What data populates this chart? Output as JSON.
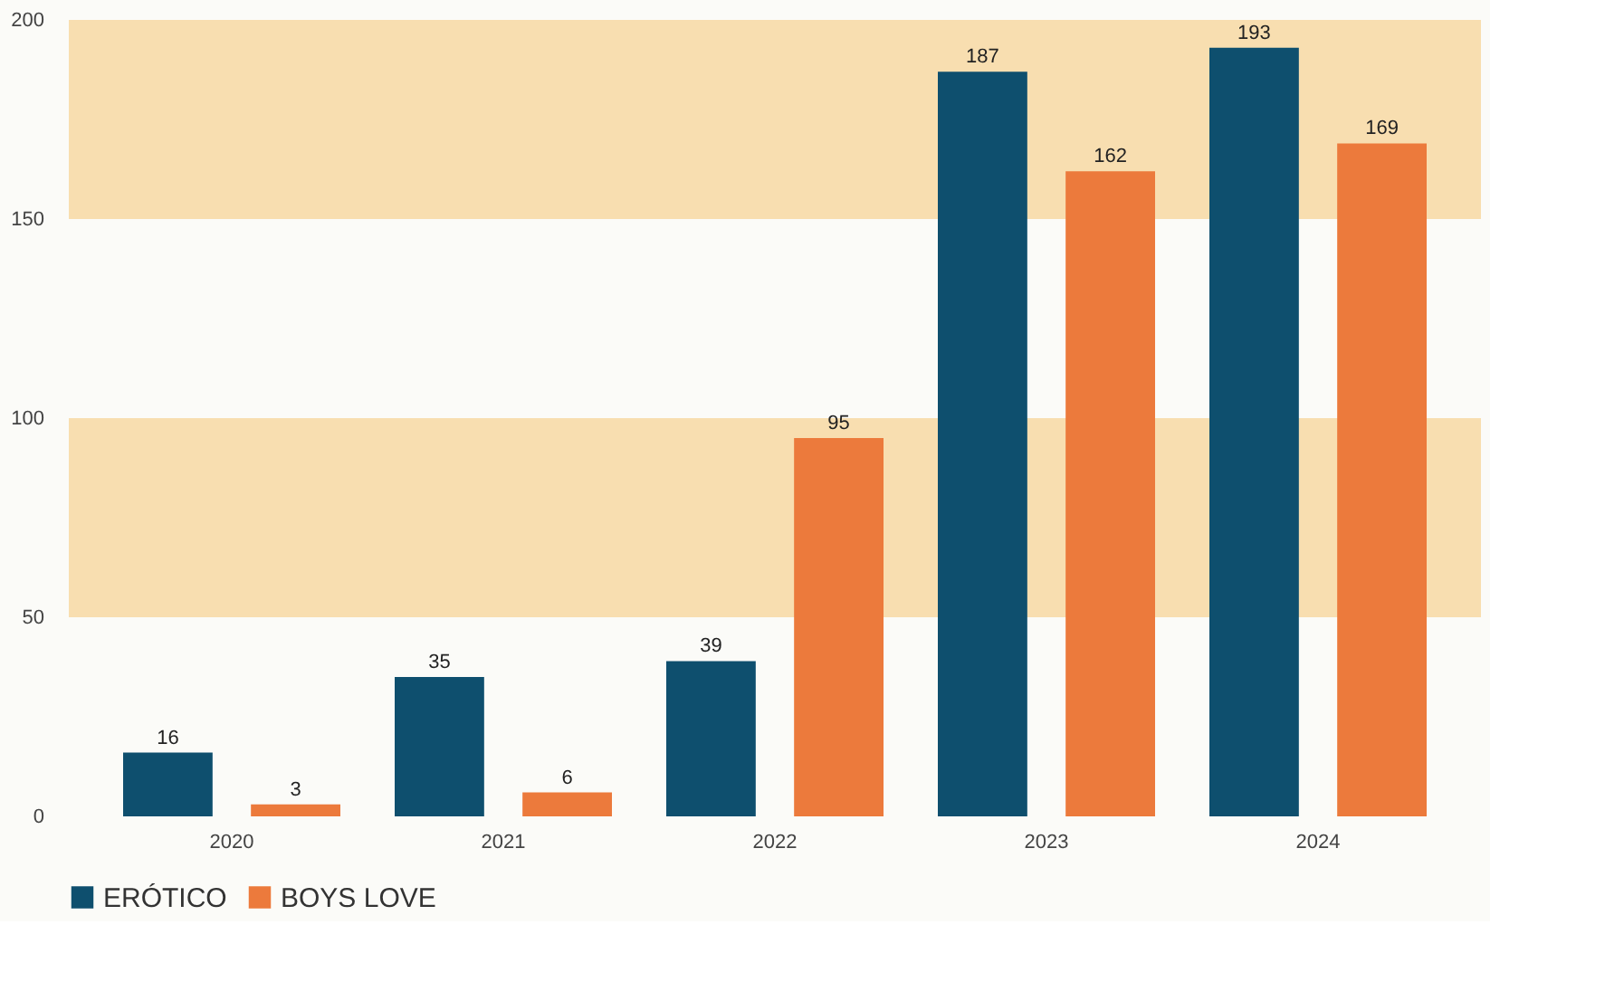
{
  "chart_data": {
    "type": "bar",
    "categories": [
      "2020",
      "2021",
      "2022",
      "2023",
      "2024"
    ],
    "series": [
      {
        "name": "ERÓTICO",
        "color": "#0e4f6e",
        "values": [
          16,
          35,
          39,
          187,
          193
        ]
      },
      {
        "name": "BOYS LOVE",
        "color": "#ec7a3c",
        "values": [
          3,
          6,
          95,
          162,
          169
        ]
      }
    ],
    "ylim": [
      0,
      200
    ],
    "yticks": [
      0,
      50,
      100,
      150,
      200
    ],
    "grid": false,
    "legend": "bottom",
    "data_labels": true,
    "bands": [
      {
        "axis": "y",
        "from": 50,
        "to": 100,
        "color": "#f8deb0"
      },
      {
        "axis": "y",
        "from": 150,
        "to": 200,
        "color": "#f8deb0"
      }
    ]
  }
}
